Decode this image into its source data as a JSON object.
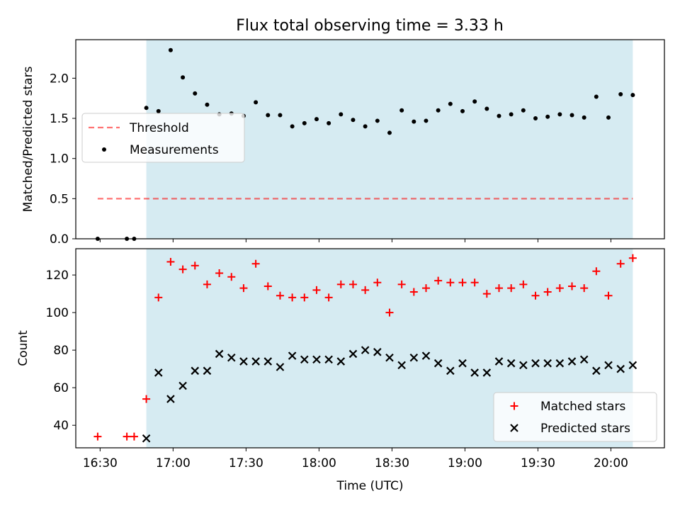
{
  "title": "Flux total observing time = 3.33 h",
  "colors": {
    "background": "#ffffff",
    "span_fill": "#add8e6",
    "threshold": "#ff0000",
    "measurements": "#000000",
    "matched": "#ff0000",
    "predicted": "#000000"
  },
  "chart_data": [
    {
      "type": "scatter",
      "ylabel": "Matched/Predicted stars",
      "xlim": [
        "16:20",
        "20:22"
      ],
      "ylim": [
        0,
        2.48
      ],
      "yticks": [
        0.0,
        0.5,
        1.0,
        1.5,
        2.0
      ],
      "ytick_labels": [
        "0.0",
        "0.5",
        "1.0",
        "1.5",
        "2.0"
      ],
      "shaded_span": [
        "16:49",
        "20:09"
      ],
      "legend": {
        "placement": "center-left",
        "entries": [
          "Threshold",
          "Measurements"
        ]
      },
      "series": [
        {
          "name": "Threshold",
          "style": "dashed-line",
          "x": [
            "16:29",
            "20:09"
          ],
          "y": [
            0.5,
            0.5
          ]
        },
        {
          "name": "Measurements",
          "style": "dots",
          "x": [
            "16:29",
            "16:41",
            "16:44",
            "16:49",
            "16:54",
            "16:59",
            "17:04",
            "17:09",
            "17:14",
            "17:19",
            "17:24",
            "17:29",
            "17:34",
            "17:39",
            "17:44",
            "17:49",
            "17:54",
            "17:59",
            "18:04",
            "18:09",
            "18:14",
            "18:19",
            "18:24",
            "18:29",
            "18:34",
            "18:39",
            "18:44",
            "18:49",
            "18:54",
            "18:59",
            "19:04",
            "19:09",
            "19:14",
            "19:19",
            "19:24",
            "19:29",
            "19:34",
            "19:39",
            "19:44",
            "19:49",
            "19:54",
            "19:59",
            "20:04",
            "20:09"
          ],
          "y": [
            0,
            0,
            0,
            1.63,
            1.59,
            2.35,
            2.01,
            1.81,
            1.67,
            1.55,
            1.56,
            1.53,
            1.7,
            1.54,
            1.54,
            1.4,
            1.44,
            1.49,
            1.44,
            1.55,
            1.48,
            1.4,
            1.47,
            1.32,
            1.6,
            1.46,
            1.47,
            1.6,
            1.68,
            1.59,
            1.71,
            1.62,
            1.53,
            1.55,
            1.6,
            1.5,
            1.52,
            1.55,
            1.54,
            1.51,
            1.77,
            1.51,
            1.8,
            1.79
          ]
        }
      ]
    },
    {
      "type": "scatter",
      "ylabel": "Count",
      "xlabel": "Time (UTC)",
      "xlim": [
        "16:20",
        "20:22"
      ],
      "ylim": [
        28,
        134
      ],
      "yticks": [
        40,
        60,
        80,
        100,
        120
      ],
      "ytick_labels": [
        "40",
        "60",
        "80",
        "100",
        "120"
      ],
      "xticks": [
        "16:30",
        "17:00",
        "17:30",
        "18:00",
        "18:30",
        "19:00",
        "19:30",
        "20:00"
      ],
      "xtick_labels": [
        "16:30",
        "17:00",
        "17:30",
        "18:00",
        "18:30",
        "19:00",
        "19:30",
        "20:00"
      ],
      "shaded_span": [
        "16:49",
        "20:09"
      ],
      "legend": {
        "placement": "lower-right",
        "entries": [
          "Matched stars",
          "Predicted stars"
        ]
      },
      "series": [
        {
          "name": "Matched stars",
          "marker": "+",
          "x": [
            "16:29",
            "16:41",
            "16:44",
            "16:49",
            "16:54",
            "16:59",
            "17:04",
            "17:09",
            "17:14",
            "17:19",
            "17:24",
            "17:29",
            "17:34",
            "17:39",
            "17:44",
            "17:49",
            "17:54",
            "17:59",
            "18:04",
            "18:09",
            "18:14",
            "18:19",
            "18:24",
            "18:29",
            "18:34",
            "18:39",
            "18:44",
            "18:49",
            "18:54",
            "18:59",
            "19:04",
            "19:09",
            "19:14",
            "19:19",
            "19:24",
            "19:29",
            "19:34",
            "19:39",
            "19:44",
            "19:49",
            "19:54",
            "19:59",
            "20:04",
            "20:09"
          ],
          "y": [
            34,
            34,
            34,
            54,
            108,
            127,
            123,
            125,
            115,
            121,
            119,
            113,
            126,
            114,
            109,
            108,
            108,
            112,
            108,
            115,
            115,
            112,
            116,
            100,
            115,
            111,
            113,
            117,
            116,
            116,
            116,
            110,
            113,
            113,
            115,
            109,
            111,
            113,
            114,
            113,
            122,
            109,
            126,
            129
          ]
        },
        {
          "name": "Predicted stars",
          "marker": "x",
          "x": [
            "16:49",
            "16:54",
            "16:59",
            "17:04",
            "17:09",
            "17:14",
            "17:19",
            "17:24",
            "17:29",
            "17:34",
            "17:39",
            "17:44",
            "17:49",
            "17:54",
            "17:59",
            "18:04",
            "18:09",
            "18:14",
            "18:19",
            "18:24",
            "18:29",
            "18:34",
            "18:39",
            "18:44",
            "18:49",
            "18:54",
            "18:59",
            "19:04",
            "19:09",
            "19:14",
            "19:19",
            "19:24",
            "19:29",
            "19:34",
            "19:39",
            "19:44",
            "19:49",
            "19:54",
            "19:59",
            "20:04",
            "20:09"
          ],
          "y": [
            33,
            68,
            54,
            61,
            69,
            69,
            78,
            76,
            74,
            74,
            74,
            71,
            77,
            75,
            75,
            75,
            74,
            78,
            80,
            79,
            76,
            72,
            76,
            77,
            73,
            69,
            73,
            68,
            68,
            74,
            73,
            72,
            73,
            73,
            73,
            74,
            75,
            69,
            72,
            70,
            72
          ]
        }
      ]
    }
  ]
}
